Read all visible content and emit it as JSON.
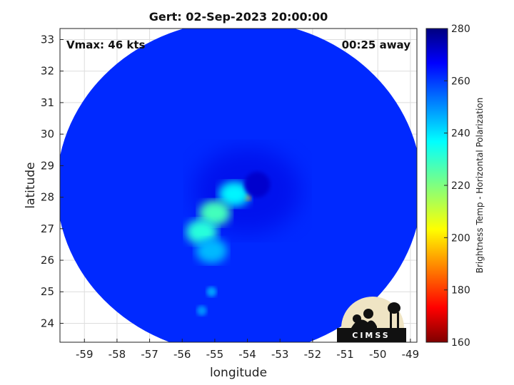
{
  "chart_data": {
    "type": "heatmap",
    "title": "Gert: 02-Sep-2023 20:00:00",
    "xlabel": "longitude",
    "ylabel": "latitude",
    "xlim": [
      -59.75,
      -48.8
    ],
    "ylim": [
      23.4,
      33.35
    ],
    "x_ticks": [
      -59,
      -58,
      -57,
      -56,
      -55,
      -54,
      -53,
      -52,
      -51,
      -50,
      -49
    ],
    "y_ticks": [
      24,
      25,
      26,
      27,
      28,
      29,
      30,
      31,
      32,
      33
    ],
    "grid": true,
    "annotations": {
      "vmax": "Vmax: 46 kts",
      "away": "00:25 away"
    },
    "colorbar": {
      "label": "Brightness Temp - Horizontal Polarization",
      "min": 160,
      "max": 280,
      "ticks": [
        160,
        180,
        200,
        220,
        240,
        260,
        280
      ],
      "colormap": "jet"
    },
    "swath": {
      "center": [
        -54.25,
        28.3
      ],
      "radius_lon": 5.6,
      "radius_lat": 5.3,
      "background_value": 262
    },
    "features": [
      {
        "name": "storm-center-cold-core",
        "lon": -54.0,
        "lat": 28.0,
        "value": 180
      },
      {
        "name": "cloud-band-north",
        "lon": -54.4,
        "lat": 28.1,
        "value": 238
      },
      {
        "name": "cloud-band-mid",
        "lon": -55.0,
        "lat": 27.5,
        "value": 228
      },
      {
        "name": "cloud-band-southwest",
        "lon": -55.4,
        "lat": 26.9,
        "value": 232
      },
      {
        "name": "cloud-band-south",
        "lon": -55.1,
        "lat": 26.3,
        "value": 245
      },
      {
        "name": "rainband-tail-1",
        "lon": -55.1,
        "lat": 25.0,
        "value": 248
      },
      {
        "name": "rainband-tail-2",
        "lon": -55.4,
        "lat": 24.4,
        "value": 250
      },
      {
        "name": "eye-region-warm",
        "lon": -53.7,
        "lat": 28.4,
        "value": 272
      }
    ]
  },
  "logo": {
    "text": "CIMSS"
  },
  "colors": {
    "background": "#ffffff",
    "swath_base": "#1f5ee0",
    "grid": "#dddddd"
  }
}
